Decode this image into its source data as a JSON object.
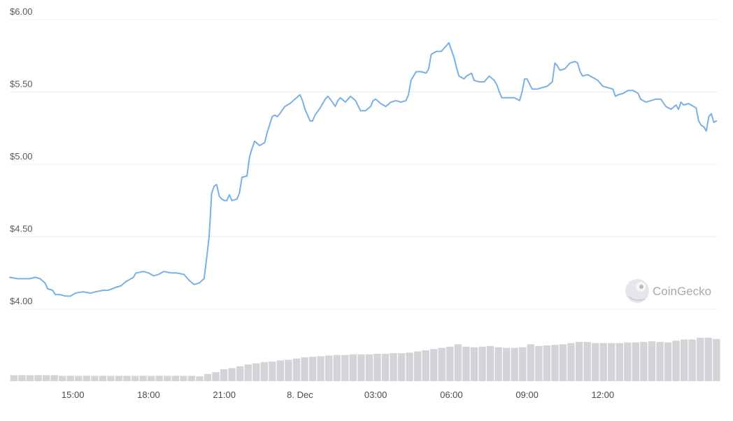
{
  "chart_data": {
    "type": "line",
    "y_unit": "USD",
    "ylim": [
      4.0,
      6.0
    ],
    "yticks": [
      6.0,
      5.5,
      5.0,
      4.5,
      4.0
    ],
    "ytick_labels": [
      "$6.00",
      "$5.50",
      "$5.00",
      "$4.50",
      "$4.00"
    ],
    "xlim": [
      "7 Dec 12:30",
      "8 Dec 12:35"
    ],
    "xticks": [
      {
        "label": "15:00",
        "hour": 15
      },
      {
        "label": "18:00",
        "hour": 18
      },
      {
        "label": "21:00",
        "hour": 21
      },
      {
        "label": "8. Dec",
        "hour": 24
      },
      {
        "label": "03:00",
        "hour": 27
      },
      {
        "label": "06:00",
        "hour": 30
      },
      {
        "label": "09:00",
        "hour": 33
      },
      {
        "label": "12:00",
        "hour": 36
      }
    ],
    "grid": true,
    "series": [
      {
        "kind": "price",
        "color": "#79b0e6",
        "points": [
          [
            12.5,
            4.22
          ],
          [
            12.8,
            4.21
          ],
          [
            13.0,
            4.21
          ],
          [
            13.3,
            4.21
          ],
          [
            13.5,
            4.22
          ],
          [
            13.7,
            4.21
          ],
          [
            13.9,
            4.18
          ],
          [
            14.0,
            4.14
          ],
          [
            14.2,
            4.13
          ],
          [
            14.3,
            4.1
          ],
          [
            14.5,
            4.1
          ],
          [
            14.7,
            4.09
          ],
          [
            14.9,
            4.09
          ],
          [
            15.1,
            4.11
          ],
          [
            15.4,
            4.12
          ],
          [
            15.7,
            4.11
          ],
          [
            15.9,
            4.12
          ],
          [
            16.2,
            4.13
          ],
          [
            16.4,
            4.13
          ],
          [
            16.7,
            4.15
          ],
          [
            16.9,
            4.16
          ],
          [
            17.1,
            4.19
          ],
          [
            17.4,
            4.22
          ],
          [
            17.5,
            4.25
          ],
          [
            17.8,
            4.26
          ],
          [
            18.0,
            4.25
          ],
          [
            18.2,
            4.23
          ],
          [
            18.4,
            4.24
          ],
          [
            18.6,
            4.26
          ],
          [
            18.9,
            4.25
          ],
          [
            19.1,
            4.25
          ],
          [
            19.4,
            4.24
          ],
          [
            19.6,
            4.2
          ],
          [
            19.8,
            4.17
          ],
          [
            20.0,
            4.18
          ],
          [
            20.2,
            4.21
          ],
          [
            20.3,
            4.35
          ],
          [
            20.4,
            4.5
          ],
          [
            20.5,
            4.8
          ],
          [
            20.6,
            4.85
          ],
          [
            20.7,
            4.86
          ],
          [
            20.8,
            4.78
          ],
          [
            20.9,
            4.76
          ],
          [
            21.0,
            4.75
          ],
          [
            21.1,
            4.75
          ],
          [
            21.2,
            4.79
          ],
          [
            21.3,
            4.75
          ],
          [
            21.5,
            4.76
          ],
          [
            21.6,
            4.8
          ],
          [
            21.7,
            4.91
          ],
          [
            21.9,
            4.92
          ],
          [
            22.0,
            5.05
          ],
          [
            22.1,
            5.11
          ],
          [
            22.2,
            5.16
          ],
          [
            22.4,
            5.13
          ],
          [
            22.6,
            5.15
          ],
          [
            22.7,
            5.22
          ],
          [
            22.9,
            5.33
          ],
          [
            23.0,
            5.34
          ],
          [
            23.1,
            5.33
          ],
          [
            23.2,
            5.35
          ],
          [
            23.4,
            5.4
          ],
          [
            23.6,
            5.42
          ],
          [
            23.8,
            5.45
          ],
          [
            24.0,
            5.48
          ],
          [
            24.1,
            5.44
          ],
          [
            24.2,
            5.38
          ],
          [
            24.4,
            5.3
          ],
          [
            24.5,
            5.3
          ],
          [
            24.6,
            5.34
          ],
          [
            24.8,
            5.39
          ],
          [
            25.0,
            5.45
          ],
          [
            25.1,
            5.47
          ],
          [
            25.2,
            5.45
          ],
          [
            25.4,
            5.4
          ],
          [
            25.5,
            5.44
          ],
          [
            25.6,
            5.46
          ],
          [
            25.8,
            5.43
          ],
          [
            25.9,
            5.45
          ],
          [
            26.0,
            5.47
          ],
          [
            26.2,
            5.44
          ],
          [
            26.4,
            5.37
          ],
          [
            26.6,
            5.37
          ],
          [
            26.8,
            5.4
          ],
          [
            26.9,
            5.44
          ],
          [
            27.0,
            5.45
          ],
          [
            27.2,
            5.42
          ],
          [
            27.4,
            5.4
          ],
          [
            27.6,
            5.43
          ],
          [
            27.8,
            5.44
          ],
          [
            28.0,
            5.43
          ],
          [
            28.2,
            5.44
          ],
          [
            28.3,
            5.48
          ],
          [
            28.4,
            5.58
          ],
          [
            28.5,
            5.61
          ],
          [
            28.6,
            5.64
          ],
          [
            28.8,
            5.64
          ],
          [
            29.0,
            5.63
          ],
          [
            29.1,
            5.66
          ],
          [
            29.2,
            5.76
          ],
          [
            29.4,
            5.78
          ],
          [
            29.6,
            5.78
          ],
          [
            29.8,
            5.82
          ],
          [
            29.9,
            5.84
          ],
          [
            30.0,
            5.79
          ],
          [
            30.1,
            5.74
          ],
          [
            30.2,
            5.67
          ],
          [
            30.3,
            5.61
          ],
          [
            30.5,
            5.59
          ],
          [
            30.6,
            5.61
          ],
          [
            30.8,
            5.63
          ],
          [
            30.9,
            5.58
          ],
          [
            31.1,
            5.57
          ],
          [
            31.3,
            5.57
          ],
          [
            31.5,
            5.61
          ],
          [
            31.7,
            5.58
          ],
          [
            31.8,
            5.55
          ],
          [
            31.9,
            5.5
          ],
          [
            32.0,
            5.46
          ],
          [
            32.2,
            5.46
          ],
          [
            32.5,
            5.46
          ],
          [
            32.7,
            5.44
          ],
          [
            32.8,
            5.5
          ],
          [
            32.9,
            5.59
          ],
          [
            33.0,
            5.59
          ],
          [
            33.2,
            5.52
          ],
          [
            33.4,
            5.52
          ],
          [
            33.6,
            5.53
          ],
          [
            33.8,
            5.54
          ],
          [
            34.0,
            5.57
          ],
          [
            34.1,
            5.7
          ],
          [
            34.2,
            5.68
          ],
          [
            34.3,
            5.65
          ],
          [
            34.5,
            5.66
          ],
          [
            34.7,
            5.7
          ],
          [
            34.9,
            5.71
          ],
          [
            35.0,
            5.7
          ],
          [
            35.1,
            5.64
          ],
          [
            35.2,
            5.61
          ],
          [
            35.4,
            5.62
          ],
          [
            35.6,
            5.6
          ],
          [
            35.8,
            5.58
          ],
          [
            36.0,
            5.54
          ],
          [
            36.2,
            5.53
          ],
          [
            36.4,
            5.52
          ],
          [
            36.5,
            5.47
          ],
          [
            36.6,
            5.48
          ],
          [
            36.8,
            5.49
          ],
          [
            37.0,
            5.51
          ],
          [
            37.2,
            5.51
          ],
          [
            37.4,
            5.49
          ],
          [
            37.5,
            5.45
          ],
          [
            37.7,
            5.43
          ],
          [
            37.9,
            5.44
          ],
          [
            38.1,
            5.45
          ],
          [
            38.3,
            5.45
          ],
          [
            38.5,
            5.4
          ],
          [
            38.7,
            5.38
          ],
          [
            38.9,
            5.41
          ],
          [
            39.0,
            5.38
          ],
          [
            39.1,
            5.43
          ],
          [
            39.2,
            5.41
          ],
          [
            39.4,
            5.42
          ],
          [
            39.6,
            5.4
          ],
          [
            39.7,
            5.39
          ],
          [
            39.8,
            5.3
          ],
          [
            39.9,
            5.27
          ],
          [
            40.0,
            5.26
          ],
          [
            40.1,
            5.23
          ],
          [
            40.2,
            5.33
          ],
          [
            40.3,
            5.35
          ],
          [
            40.4,
            5.29
          ],
          [
            40.5,
            5.3
          ]
        ]
      },
      {
        "kind": "volume",
        "color": "#d3d3d8",
        "bars": [
          [
            12.52,
            0.1
          ],
          [
            12.84,
            0.1
          ],
          [
            13.16,
            0.1
          ],
          [
            13.48,
            0.1
          ],
          [
            13.8,
            0.1
          ],
          [
            14.12,
            0.1
          ],
          [
            14.44,
            0.09
          ],
          [
            14.76,
            0.09
          ],
          [
            15.08,
            0.09
          ],
          [
            15.4,
            0.09
          ],
          [
            15.72,
            0.09
          ],
          [
            16.04,
            0.09
          ],
          [
            16.36,
            0.09
          ],
          [
            16.68,
            0.09
          ],
          [
            17.0,
            0.09
          ],
          [
            17.32,
            0.09
          ],
          [
            17.64,
            0.09
          ],
          [
            17.96,
            0.09
          ],
          [
            18.28,
            0.09
          ],
          [
            18.6,
            0.09
          ],
          [
            18.92,
            0.09
          ],
          [
            19.24,
            0.09
          ],
          [
            19.56,
            0.09
          ],
          [
            19.88,
            0.08
          ],
          [
            20.2,
            0.12
          ],
          [
            20.52,
            0.15
          ],
          [
            20.84,
            0.2
          ],
          [
            21.16,
            0.22
          ],
          [
            21.48,
            0.25
          ],
          [
            21.8,
            0.28
          ],
          [
            22.12,
            0.3
          ],
          [
            22.44,
            0.32
          ],
          [
            22.76,
            0.33
          ],
          [
            23.08,
            0.35
          ],
          [
            23.4,
            0.36
          ],
          [
            23.72,
            0.38
          ],
          [
            24.04,
            0.4
          ],
          [
            24.36,
            0.41
          ],
          [
            24.68,
            0.42
          ],
          [
            25.0,
            0.43
          ],
          [
            25.32,
            0.44
          ],
          [
            25.64,
            0.44
          ],
          [
            25.96,
            0.45
          ],
          [
            26.28,
            0.45
          ],
          [
            26.6,
            0.45
          ],
          [
            26.92,
            0.46
          ],
          [
            27.24,
            0.46
          ],
          [
            27.56,
            0.47
          ],
          [
            27.88,
            0.47
          ],
          [
            28.2,
            0.48
          ],
          [
            28.52,
            0.5
          ],
          [
            28.84,
            0.52
          ],
          [
            29.16,
            0.54
          ],
          [
            29.48,
            0.56
          ],
          [
            29.8,
            0.58
          ],
          [
            30.12,
            0.62
          ],
          [
            30.44,
            0.58
          ],
          [
            30.76,
            0.57
          ],
          [
            31.08,
            0.58
          ],
          [
            31.4,
            0.59
          ],
          [
            31.72,
            0.57
          ],
          [
            32.04,
            0.56
          ],
          [
            32.36,
            0.56
          ],
          [
            32.68,
            0.57
          ],
          [
            33.0,
            0.62
          ],
          [
            33.32,
            0.59
          ],
          [
            33.64,
            0.6
          ],
          [
            33.96,
            0.61
          ],
          [
            34.28,
            0.62
          ],
          [
            34.6,
            0.64
          ],
          [
            34.92,
            0.66
          ],
          [
            35.24,
            0.66
          ],
          [
            35.56,
            0.64
          ],
          [
            35.88,
            0.64
          ],
          [
            36.2,
            0.64
          ],
          [
            36.52,
            0.64
          ],
          [
            36.84,
            0.65
          ],
          [
            37.16,
            0.65
          ],
          [
            37.48,
            0.66
          ],
          [
            37.8,
            0.67
          ],
          [
            38.12,
            0.66
          ],
          [
            38.44,
            0.65
          ],
          [
            38.76,
            0.68
          ],
          [
            39.08,
            0.7
          ],
          [
            39.4,
            0.7
          ],
          [
            39.72,
            0.73
          ],
          [
            40.04,
            0.73
          ],
          [
            40.36,
            0.71
          ]
        ]
      }
    ]
  },
  "watermark": {
    "text": "CoinGecko",
    "icon": "gecko-logo-icon"
  }
}
